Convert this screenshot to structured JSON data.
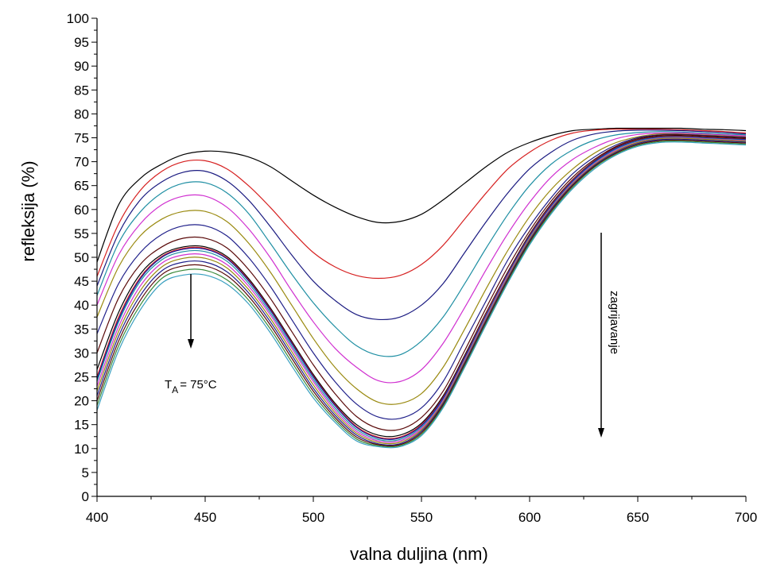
{
  "chart_data": {
    "type": "line",
    "xlabel": "valna duljina (nm)",
    "ylabel": "refleksija (%)",
    "xlim": [
      400,
      700
    ],
    "ylim": [
      0,
      100
    ],
    "xticks": [
      400,
      450,
      500,
      550,
      600,
      650,
      700
    ],
    "yticks": [
      0,
      5,
      10,
      15,
      20,
      25,
      30,
      35,
      40,
      45,
      50,
      55,
      60,
      65,
      70,
      75,
      80,
      85,
      90,
      95,
      100
    ],
    "grid": false,
    "legend": "none",
    "x": [
      400,
      410,
      420,
      430,
      440,
      450,
      460,
      470,
      480,
      490,
      500,
      510,
      520,
      530,
      540,
      550,
      560,
      570,
      580,
      590,
      600,
      610,
      620,
      630,
      640,
      650,
      660,
      670,
      680,
      690,
      700
    ],
    "series": [
      {
        "color": "#000000",
        "values": [
          49,
          61,
          66.5,
          69.5,
          71.5,
          72.2,
          72,
          71,
          69,
          66,
          63,
          60.5,
          58.5,
          57.3,
          57.5,
          59,
          62,
          65.5,
          69,
          72,
          74,
          75.5,
          76.5,
          76.8,
          77,
          77,
          77,
          77,
          76.8,
          76.7,
          76.5
        ]
      },
      {
        "color": "#d62020",
        "values": [
          46,
          57,
          64,
          68,
          70,
          70.2,
          68.5,
          65,
          60.5,
          55.5,
          51,
          48,
          46.2,
          45.6,
          46.2,
          48.5,
          52.5,
          58,
          63.5,
          68.5,
          72,
          74.5,
          76,
          76.6,
          76.8,
          76.8,
          76.8,
          76.7,
          76.5,
          76.3,
          76
        ]
      },
      {
        "color": "#1a1a80",
        "values": [
          44,
          55,
          62,
          65.8,
          67.8,
          68,
          66,
          62,
          56.5,
          50.5,
          45,
          41,
          38,
          37,
          37.5,
          40,
          44.5,
          51,
          57.5,
          63.5,
          68.5,
          72,
          74.5,
          75.8,
          76.4,
          76.6,
          76.6,
          76.5,
          76.3,
          76.1,
          75.8
        ]
      },
      {
        "color": "#1f8fa3",
        "values": [
          42,
          53,
          59.5,
          63.5,
          65.5,
          65.6,
          63.5,
          59.2,
          53,
          46.5,
          40.5,
          35.5,
          31.5,
          29.5,
          29.6,
          32.5,
          37.5,
          44.5,
          52,
          59,
          65,
          69.5,
          72.5,
          74.5,
          75.6,
          76.1,
          76.3,
          76.2,
          76,
          75.8,
          75.6
        ]
      },
      {
        "color": "#d030d0",
        "values": [
          40,
          50.5,
          57,
          61,
          62.8,
          62.8,
          60.5,
          56,
          50,
          43,
          36.5,
          31,
          27,
          24.2,
          24,
          26.5,
          32,
          39.5,
          47.5,
          55,
          61.5,
          66.8,
          70.5,
          73,
          74.8,
          75.7,
          76,
          76,
          75.8,
          75.6,
          75.4
        ]
      },
      {
        "color": "#9a8a10",
        "values": [
          37.5,
          48,
          54.5,
          58,
          59.6,
          59.6,
          57.5,
          53,
          47,
          40,
          33,
          27,
          22.5,
          19.7,
          19.4,
          21.5,
          27,
          35,
          43.5,
          51.5,
          58.5,
          64.2,
          68.5,
          71.8,
          74,
          75.2,
          75.8,
          75.8,
          75.6,
          75.4,
          75.2
        ]
      },
      {
        "color": "#20208a",
        "values": [
          34,
          44.5,
          51,
          54.8,
          56.6,
          56.6,
          54.5,
          50,
          44,
          37,
          30,
          24,
          19.3,
          16.6,
          16.3,
          18.5,
          24,
          32.5,
          41,
          49.5,
          56.5,
          62.5,
          67.5,
          71,
          73.5,
          75,
          75.6,
          75.7,
          75.5,
          75.3,
          75.1
        ]
      },
      {
        "color": "#5a0a0a",
        "values": [
          30,
          41.5,
          48.5,
          52.2,
          54,
          54,
          52,
          47.5,
          41.5,
          34.5,
          27.5,
          21.5,
          16.7,
          14.2,
          14,
          16.5,
          22,
          30.5,
          39.5,
          48,
          55.5,
          61.8,
          66.8,
          70.5,
          73.2,
          74.8,
          75.5,
          75.6,
          75.4,
          75.2,
          75
        ]
      },
      {
        "color": "#000000",
        "values": [
          26.5,
          38.5,
          46.5,
          50.6,
          52.2,
          52.2,
          50.2,
          45.6,
          39.5,
          32.5,
          25.5,
          19.5,
          15,
          12.8,
          12.8,
          15.3,
          21,
          29.5,
          38.5,
          47,
          54.8,
          61.2,
          66.3,
          70.2,
          73,
          74.6,
          75.3,
          75.4,
          75.2,
          75,
          74.8
        ]
      },
      {
        "color": "#d62020",
        "values": [
          25,
          37.5,
          45.8,
          50.2,
          51.9,
          51.9,
          49.9,
          45.3,
          39.2,
          32.2,
          25.2,
          19.2,
          14.6,
          12.4,
          12.4,
          15,
          20.7,
          29.2,
          38.3,
          46.8,
          54.6,
          61,
          66.2,
          70.1,
          72.9,
          74.5,
          75.2,
          75.3,
          75.1,
          74.9,
          74.7
        ]
      },
      {
        "color": "#0b1aa0",
        "values": [
          24.5,
          37,
          45.5,
          50,
          51.7,
          51.7,
          49.7,
          45.1,
          39,
          32,
          25,
          19,
          14.4,
          12.2,
          12.2,
          14.8,
          20.5,
          29,
          38,
          46.6,
          54.4,
          60.8,
          66,
          70,
          72.8,
          74.4,
          75.1,
          75.2,
          75,
          74.8,
          74.6
        ]
      },
      {
        "color": "#1f8fa3",
        "values": [
          24,
          36.5,
          45,
          49.5,
          51.2,
          51.2,
          49.2,
          44.6,
          38.5,
          31.5,
          24.5,
          18.5,
          14,
          11.9,
          11.9,
          14.5,
          20.2,
          28.7,
          37.8,
          46.4,
          54.2,
          60.6,
          65.8,
          69.8,
          72.6,
          74.3,
          75,
          75.1,
          74.9,
          74.7,
          74.5
        ]
      },
      {
        "color": "#d030d0",
        "values": [
          23,
          35.5,
          44,
          48.8,
          50.5,
          50.5,
          48.5,
          44,
          38,
          31,
          24,
          18,
          13.6,
          11.6,
          11.6,
          14.2,
          20,
          28.5,
          37.5,
          46.2,
          54,
          60.4,
          65.6,
          69.6,
          72.4,
          74.1,
          74.9,
          75,
          74.8,
          74.6,
          74.4
        ]
      },
      {
        "color": "#9a8a10",
        "values": [
          22,
          34.5,
          43,
          48,
          49.8,
          49.8,
          47.8,
          43.3,
          37.3,
          30.3,
          23.3,
          17.5,
          13.2,
          11.3,
          11.3,
          13.9,
          19.7,
          28.2,
          37.2,
          45.9,
          53.8,
          60.2,
          65.4,
          69.4,
          72.2,
          74,
          74.8,
          74.9,
          74.7,
          74.5,
          74.3
        ]
      },
      {
        "color": "#20208a",
        "values": [
          21,
          33.5,
          42,
          47.2,
          49,
          49,
          47,
          42.6,
          36.6,
          29.6,
          22.6,
          17,
          12.8,
          11,
          11,
          13.6,
          19.4,
          27.9,
          36.9,
          45.6,
          53.5,
          60,
          65.2,
          69.2,
          72,
          73.8,
          74.6,
          74.7,
          74.5,
          74.3,
          74.1
        ]
      },
      {
        "color": "#5a0a0a",
        "values": [
          20,
          32.5,
          41,
          46.4,
          48.2,
          48.2,
          46.2,
          41.9,
          35.9,
          28.9,
          22,
          16.5,
          12.4,
          10.8,
          10.8,
          13.3,
          19.1,
          27.6,
          36.6,
          45.3,
          53.2,
          59.7,
          65,
          69,
          71.8,
          73.6,
          74.4,
          74.5,
          74.3,
          74.1,
          73.9
        ]
      },
      {
        "color": "#3a8a3a",
        "values": [
          19,
          31.5,
          40,
          45.6,
          47.3,
          47.3,
          45.3,
          41.1,
          35.1,
          28.1,
          21.3,
          16,
          12,
          10.6,
          10.6,
          13,
          18.8,
          27.3,
          36.3,
          45,
          52.9,
          59.4,
          64.7,
          68.8,
          71.6,
          73.4,
          74.2,
          74.3,
          74.1,
          73.9,
          73.7
        ]
      },
      {
        "color": "#3aa0c0",
        "values": [
          18,
          30.5,
          39,
          44.6,
          46.3,
          46.3,
          44.4,
          40.3,
          34.3,
          27.3,
          20.6,
          15.5,
          11.6,
          10.4,
          10.4,
          12.7,
          18.5,
          27,
          36,
          44.7,
          52.6,
          59.1,
          64.4,
          68.5,
          71.4,
          73.2,
          74,
          74.1,
          73.9,
          73.7,
          73.5
        ]
      }
    ],
    "annotations": [
      {
        "text_main": "T",
        "text_sub": "A",
        "text_rest": "= 75°C",
        "at": [
          443,
          24
        ]
      },
      {
        "text": "zagrijavanje",
        "at": [
          632,
          38
        ]
      }
    ]
  }
}
